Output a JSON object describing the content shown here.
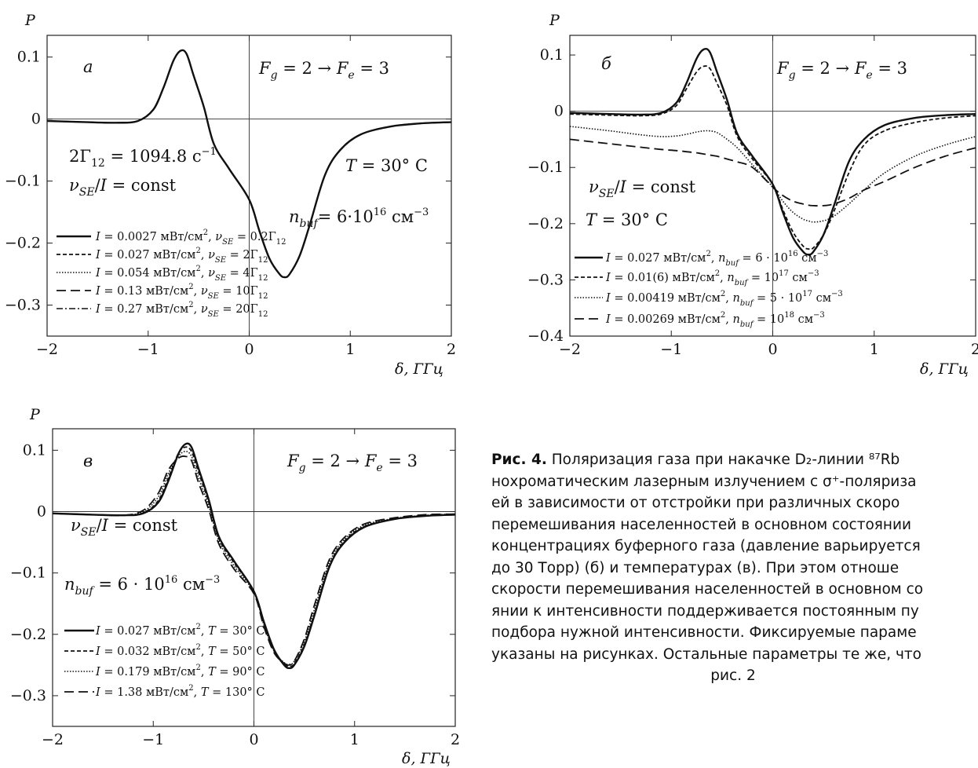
{
  "caption": {
    "label": "Рис. 4.",
    "lines": [
      "Поляризация газа при накачке D₂-линии ⁸⁷Rb",
      "нохроматическим лазерным излучением с σ⁺-поляриза",
      "ей в зависимости от отстройки при различных скоро",
      "перемешивания населенностей в основном состоянии",
      "концентрациях буферного газа (давление варьируется",
      "до 30 Торр) (б) и температурах (в). При этом отноше",
      "скорости перемешивания населенностей в основном со",
      "янии к интенсивности поддерживается постоянным пу",
      "подбора нужной интенсивности. Фиксируемые параме",
      "указаны на рисунках. Остальные параметры те же, что",
      "рис. 2"
    ]
  },
  "chart_data": [
    {
      "type": "line",
      "panel_label": "а",
      "ylabel": "P",
      "xlabel": "δ, ГГц",
      "xlim": [
        -2,
        2
      ],
      "ylim": [
        -0.35,
        0.135
      ],
      "xticks": [
        -2,
        -1,
        0,
        1,
        2
      ],
      "xtick_labels": [
        "−2",
        "−1",
        "0",
        "1",
        "2"
      ],
      "yticks": [
        0.1,
        0,
        -0.1,
        -0.2,
        -0.3
      ],
      "ytick_labels": [
        "0.1",
        "0",
        "−0.1",
        "−0.2",
        "−0.3"
      ],
      "annotations": [
        "F_g = 2 → F_e = 3",
        "2Γ₁₂ = 1094.8 c⁻¹",
        "ν_SE/I = const",
        "T = 30° C",
        "n_buf = 6·10¹⁶ см⁻³"
      ],
      "legend": [
        {
          "label": "I = 0.0027 мВт/см², ν_SE = 0.2Γ₁₂",
          "style": "solid"
        },
        {
          "label": "I = 0.027 мВт/см², ν_SE = 2Γ₁₂",
          "style": "dashed"
        },
        {
          "label": "I = 0.054 мВт/см², ν_SE = 4Γ₁₂",
          "style": "dotted"
        },
        {
          "label": "I = 0.13 мВт/см², ν_SE = 10Γ₁₂",
          "style": "longdash"
        },
        {
          "label": "I = 0.27 мВт/см², ν_SE = 20Γ₁₂",
          "style": "dashdot"
        }
      ],
      "x": [
        -2,
        -1.6,
        -1.3,
        -1.1,
        -0.95,
        -0.85,
        -0.75,
        -0.68,
        -0.62,
        -0.55,
        -0.45,
        -0.35,
        -0.2,
        0,
        0.1,
        0.2,
        0.3,
        0.35,
        0.4,
        0.5,
        0.6,
        0.75,
        0.9,
        1.1,
        1.4,
        1.7,
        2
      ],
      "series": [
        {
          "style": "solid",
          "y": [
            -0.003,
            -0.005,
            -0.006,
            -0.003,
            0.015,
            0.05,
            0.094,
            0.11,
            0.105,
            0.07,
            0.02,
            -0.04,
            -0.08,
            -0.13,
            -0.18,
            -0.225,
            -0.25,
            -0.255,
            -0.25,
            -0.22,
            -0.17,
            -0.09,
            -0.05,
            -0.025,
            -0.012,
            -0.007,
            -0.005
          ]
        },
        {
          "style": "dashed",
          "y": [
            -0.003,
            -0.005,
            -0.006,
            -0.003,
            0.015,
            0.05,
            0.094,
            0.11,
            0.105,
            0.07,
            0.02,
            -0.04,
            -0.08,
            -0.13,
            -0.18,
            -0.225,
            -0.25,
            -0.255,
            -0.25,
            -0.22,
            -0.17,
            -0.09,
            -0.05,
            -0.025,
            -0.012,
            -0.007,
            -0.005
          ]
        },
        {
          "style": "dotted",
          "y": [
            -0.003,
            -0.005,
            -0.006,
            -0.003,
            0.015,
            0.05,
            0.094,
            0.11,
            0.105,
            0.07,
            0.02,
            -0.04,
            -0.08,
            -0.13,
            -0.18,
            -0.225,
            -0.25,
            -0.255,
            -0.25,
            -0.22,
            -0.17,
            -0.09,
            -0.05,
            -0.025,
            -0.012,
            -0.007,
            -0.005
          ]
        },
        {
          "style": "longdash",
          "y": [
            -0.003,
            -0.005,
            -0.006,
            -0.003,
            0.015,
            0.05,
            0.094,
            0.11,
            0.105,
            0.07,
            0.02,
            -0.04,
            -0.08,
            -0.13,
            -0.18,
            -0.225,
            -0.25,
            -0.255,
            -0.25,
            -0.22,
            -0.17,
            -0.09,
            -0.05,
            -0.025,
            -0.012,
            -0.007,
            -0.005
          ]
        },
        {
          "style": "dashdot",
          "y": [
            -0.003,
            -0.005,
            -0.006,
            -0.003,
            0.015,
            0.05,
            0.094,
            0.11,
            0.105,
            0.07,
            0.02,
            -0.04,
            -0.08,
            -0.13,
            -0.18,
            -0.225,
            -0.25,
            -0.255,
            -0.25,
            -0.22,
            -0.17,
            -0.09,
            -0.05,
            -0.025,
            -0.012,
            -0.007,
            -0.005
          ]
        }
      ]
    },
    {
      "type": "line",
      "panel_label": "б",
      "ylabel": "P",
      "xlabel": "δ, ГГц",
      "xlim": [
        -2,
        2
      ],
      "ylim": [
        -0.4,
        0.135
      ],
      "xticks": [
        -2,
        -1,
        0,
        1,
        2
      ],
      "xtick_labels": [
        "−2",
        "−1",
        "0",
        "1",
        "2"
      ],
      "yticks": [
        0.1,
        0,
        -0.1,
        -0.2,
        -0.3,
        -0.4
      ],
      "ytick_labels": [
        "0.1",
        "0",
        "−0.1",
        "−0.2",
        "−0.3",
        "−0.4"
      ],
      "annotations": [
        "F_g = 2 → F_e = 3",
        "ν_SE/I = const",
        "T = 30° C"
      ],
      "legend": [
        {
          "label": "I = 0.027 мВт/см², n_buf = 6·10¹⁶ см⁻³",
          "style": "solid"
        },
        {
          "label": "I = 0.01(6) мВт/см², n_buf = 10¹⁷ см⁻³",
          "style": "dashed"
        },
        {
          "label": "I = 0.00419 мВт/см², n_buf = 5·10¹⁷ см⁻³",
          "style": "dotted"
        },
        {
          "label": "I = 0.00269 мВт/см², n_buf = 10¹⁸ см⁻³",
          "style": "longdash"
        }
      ],
      "x": [
        -2,
        -1.6,
        -1.3,
        -1.1,
        -0.95,
        -0.85,
        -0.75,
        -0.68,
        -0.62,
        -0.55,
        -0.45,
        -0.35,
        -0.2,
        0,
        0.1,
        0.2,
        0.3,
        0.35,
        0.4,
        0.5,
        0.6,
        0.75,
        0.9,
        1.1,
        1.4,
        1.7,
        2
      ],
      "series": [
        {
          "style": "solid",
          "y": [
            -0.003,
            -0.005,
            -0.006,
            -0.003,
            0.015,
            0.05,
            0.094,
            0.11,
            0.105,
            0.07,
            0.02,
            -0.04,
            -0.08,
            -0.13,
            -0.18,
            -0.225,
            -0.25,
            -0.255,
            -0.25,
            -0.22,
            -0.17,
            -0.09,
            -0.05,
            -0.025,
            -0.012,
            -0.007,
            -0.005
          ]
        },
        {
          "style": "dashed",
          "y": [
            -0.005,
            -0.007,
            -0.008,
            -0.005,
            0.01,
            0.04,
            0.07,
            0.08,
            0.076,
            0.05,
            0.01,
            -0.045,
            -0.085,
            -0.13,
            -0.175,
            -0.215,
            -0.24,
            -0.245,
            -0.243,
            -0.22,
            -0.18,
            -0.11,
            -0.06,
            -0.035,
            -0.02,
            -0.012,
            -0.008
          ]
        },
        {
          "style": "dotted",
          "y": [
            -0.027,
            -0.035,
            -0.042,
            -0.045,
            -0.044,
            -0.041,
            -0.037,
            -0.035,
            -0.035,
            -0.038,
            -0.05,
            -0.065,
            -0.095,
            -0.135,
            -0.16,
            -0.18,
            -0.192,
            -0.195,
            -0.197,
            -0.195,
            -0.187,
            -0.165,
            -0.14,
            -0.11,
            -0.08,
            -0.06,
            -0.045
          ]
        },
        {
          "style": "longdash",
          "y": [
            -0.05,
            -0.058,
            -0.064,
            -0.068,
            -0.07,
            -0.072,
            -0.074,
            -0.076,
            -0.078,
            -0.08,
            -0.085,
            -0.09,
            -0.1,
            -0.135,
            -0.15,
            -0.16,
            -0.165,
            -0.167,
            -0.168,
            -0.168,
            -0.165,
            -0.155,
            -0.14,
            -0.125,
            -0.1,
            -0.08,
            -0.065
          ]
        }
      ]
    },
    {
      "type": "line",
      "panel_label": "в",
      "ylabel": "P",
      "xlabel": "δ, ГГц",
      "xlim": [
        -2,
        2
      ],
      "ylim": [
        -0.35,
        0.135
      ],
      "xticks": [
        -2,
        -1,
        0,
        1,
        2
      ],
      "xtick_labels": [
        "−2",
        "−1",
        "0",
        "1",
        "2"
      ],
      "yticks": [
        0.1,
        0,
        -0.1,
        -0.2,
        -0.3
      ],
      "ytick_labels": [
        "0.1",
        "0",
        "−0.1",
        "−0.2",
        "−0.3"
      ],
      "annotations": [
        "F_g = 2 → F_e = 3",
        "ν_SE/I = const",
        "n_buf = 6·10¹⁶ см⁻³"
      ],
      "legend": [
        {
          "label": "I = 0.027 мВт/см², T = 30° C",
          "style": "solid"
        },
        {
          "label": "I = 0.032 мВт/см², T = 50° C",
          "style": "dashed"
        },
        {
          "label": "I = 0.179 мВт/см², T = 90° C",
          "style": "dotted"
        },
        {
          "label": "I = 1.38 мВт/см², T = 130° C",
          "style": "longdash"
        }
      ],
      "x": [
        -2,
        -1.6,
        -1.3,
        -1.1,
        -0.95,
        -0.85,
        -0.75,
        -0.68,
        -0.62,
        -0.55,
        -0.45,
        -0.35,
        -0.2,
        0,
        0.1,
        0.2,
        0.3,
        0.35,
        0.4,
        0.5,
        0.6,
        0.75,
        0.9,
        1.1,
        1.4,
        1.7,
        2
      ],
      "series": [
        {
          "style": "solid",
          "y": [
            -0.003,
            -0.005,
            -0.006,
            -0.003,
            0.015,
            0.05,
            0.094,
            0.11,
            0.105,
            0.07,
            0.02,
            -0.04,
            -0.08,
            -0.13,
            -0.18,
            -0.225,
            -0.25,
            -0.255,
            -0.25,
            -0.22,
            -0.17,
            -0.09,
            -0.05,
            -0.025,
            -0.012,
            -0.007,
            -0.005
          ]
        },
        {
          "style": "dashed",
          "y": [
            -0.003,
            -0.005,
            -0.006,
            -0.002,
            0.018,
            0.055,
            0.095,
            0.105,
            0.098,
            0.064,
            0.016,
            -0.043,
            -0.083,
            -0.13,
            -0.182,
            -0.226,
            -0.248,
            -0.252,
            -0.248,
            -0.217,
            -0.167,
            -0.088,
            -0.048,
            -0.024,
            -0.012,
            -0.007,
            -0.005
          ]
        },
        {
          "style": "dotted",
          "y": [
            -0.003,
            -0.005,
            -0.006,
            0,
            0.024,
            0.062,
            0.09,
            0.098,
            0.09,
            0.055,
            0.01,
            -0.047,
            -0.088,
            -0.132,
            -0.185,
            -0.228,
            -0.246,
            -0.249,
            -0.244,
            -0.212,
            -0.16,
            -0.083,
            -0.045,
            -0.022,
            -0.011,
            -0.006,
            -0.004
          ]
        },
        {
          "style": "longdash",
          "y": [
            -0.003,
            -0.005,
            -0.006,
            0.002,
            0.03,
            0.068,
            0.087,
            0.09,
            0.083,
            0.047,
            0.004,
            -0.052,
            -0.093,
            -0.134,
            -0.188,
            -0.23,
            -0.247,
            -0.25,
            -0.244,
            -0.208,
            -0.153,
            -0.078,
            -0.042,
            -0.02,
            -0.01,
            -0.005,
            -0.004
          ]
        }
      ]
    }
  ]
}
